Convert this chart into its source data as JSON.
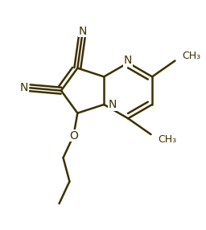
{
  "bond_color": "#3d3000",
  "bg_color": "#ffffff",
  "lw": 1.8,
  "fs_n": 10,
  "fs_o": 10,
  "xlim": [
    0,
    10
  ],
  "ylim": [
    0,
    11
  ],
  "b": 1.38,
  "dbl_off": 0.22,
  "dbl_sh": 0.12
}
